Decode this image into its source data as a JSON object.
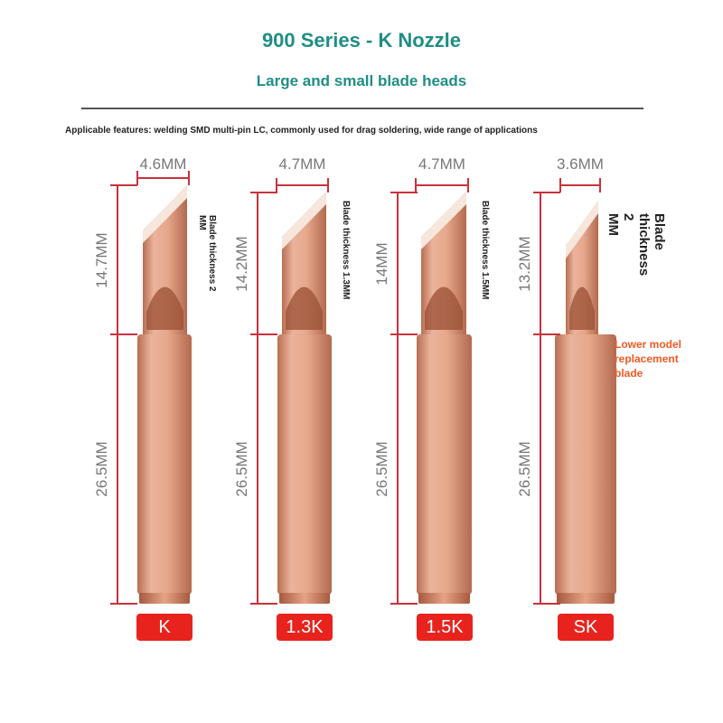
{
  "header": {
    "title": "900 Series - K Nozzle",
    "subtitle": "Large and small blade heads",
    "features": "Applicable features: welding SMD multi-pin LC, commonly used for drag soldering, wide range of applications"
  },
  "tips": [
    {
      "model": "K",
      "width": "4.6MM",
      "upper_length": "14.7MM",
      "lower_length": "26.5MM",
      "blade_note": "Blade thickness 2\nMM"
    },
    {
      "model": "1.3K",
      "width": "4.7MM",
      "upper_length": "14.2MM",
      "lower_length": "26.5MM",
      "blade_note": "Blade thickness 1.3MM"
    },
    {
      "model": "1.5K",
      "width": "4.7MM",
      "upper_length": "14MM",
      "lower_length": "26.5MM",
      "blade_note": "Blade thickness 1.5MM"
    },
    {
      "model": "SK",
      "width": "3.6MM",
      "upper_length": "13.2MM",
      "lower_length": "26.5MM",
      "blade_note": "Blade\nthickness 2\nMM"
    }
  ],
  "lower_model_note": "Lower model replacement blade",
  "colors": {
    "accent": "#1f8e84",
    "dimension": "#c8323c",
    "badge": "#e8231d",
    "note": "#f05a22",
    "copper": "#d9957a"
  }
}
